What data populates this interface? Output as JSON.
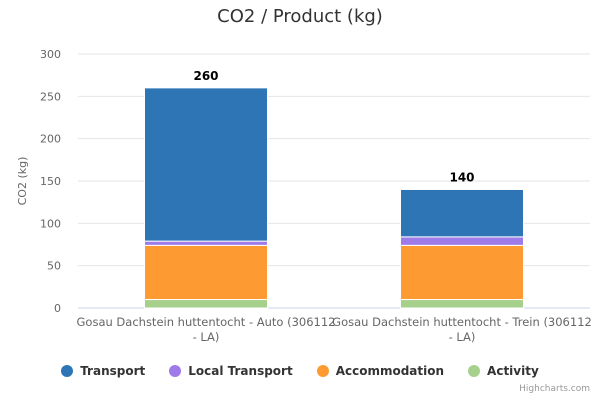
{
  "chart_data": {
    "type": "bar",
    "stacked": true,
    "title": "CO2 / Product (kg)",
    "xlabel": "",
    "ylabel": "CO2 (kg)",
    "ylim": [
      0,
      300
    ],
    "yticks": [
      0,
      50,
      100,
      150,
      200,
      250,
      300
    ],
    "grid": true,
    "legend_placement": "bottom",
    "categories": [
      [
        "Gosau Dachstein huttentocht - Auto (306112",
        "- LA)"
      ],
      [
        "Gosau Dachstein huttentocht - Trein (306112",
        "- LA)"
      ]
    ],
    "series": [
      {
        "name": "Transport",
        "color": "#2e75b6",
        "values": [
          181,
          56
        ]
      },
      {
        "name": "Local Transport",
        "color": "#9e7be8",
        "values": [
          5,
          10
        ]
      },
      {
        "name": "Accommodation",
        "color": "#fd9a32",
        "values": [
          64,
          64
        ]
      },
      {
        "name": "Activity",
        "color": "#a6d08b",
        "values": [
          10,
          10
        ]
      }
    ],
    "totals": [
      260,
      140
    ]
  },
  "credits": "Highcharts.com"
}
